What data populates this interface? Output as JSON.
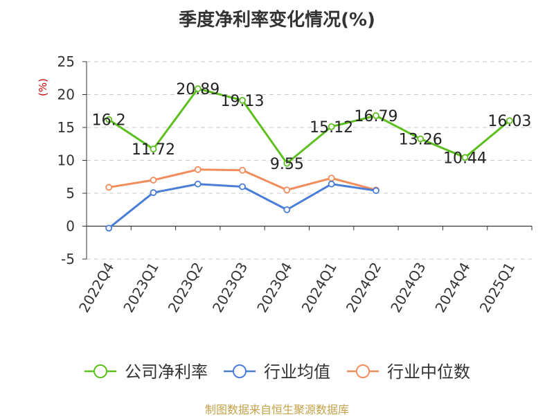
{
  "chart_data": {
    "type": "line",
    "title": "季度净利率变化情况(%)",
    "ylabel": "(%)",
    "xlabel": "",
    "ylim": [
      -5,
      25
    ],
    "yticks": [
      -5,
      0,
      5,
      10,
      15,
      20,
      25
    ],
    "grid": true,
    "legend_position": "bottom",
    "categories": [
      "2022Q4",
      "2023Q1",
      "2023Q2",
      "2023Q3",
      "2023Q4",
      "2024Q1",
      "2024Q2",
      "2024Q3",
      "2024Q4",
      "2025Q1"
    ],
    "series": [
      {
        "name": "公司净利率",
        "color": "#5cbf1e",
        "values": [
          16.2,
          11.72,
          20.89,
          19.13,
          9.55,
          15.12,
          16.79,
          13.26,
          10.44,
          16.03
        ],
        "labels": [
          "16.2",
          "11.72",
          "20.89",
          "19.13",
          "9.55",
          "15.12",
          "16.79",
          "13.26",
          "10.44",
          "16.03"
        ]
      },
      {
        "name": "行业均值",
        "color": "#4a7dd8",
        "values": [
          -0.3,
          5.1,
          6.4,
          6.0,
          2.5,
          6.4,
          5.4,
          null,
          null,
          null
        ]
      },
      {
        "name": "行业中位数",
        "color": "#f28c5a",
        "values": [
          5.9,
          7.0,
          8.6,
          8.5,
          5.5,
          7.3,
          5.5,
          null,
          null,
          null
        ]
      }
    ]
  },
  "footer": {
    "source": "制图数据来自恒生聚源数据库"
  }
}
